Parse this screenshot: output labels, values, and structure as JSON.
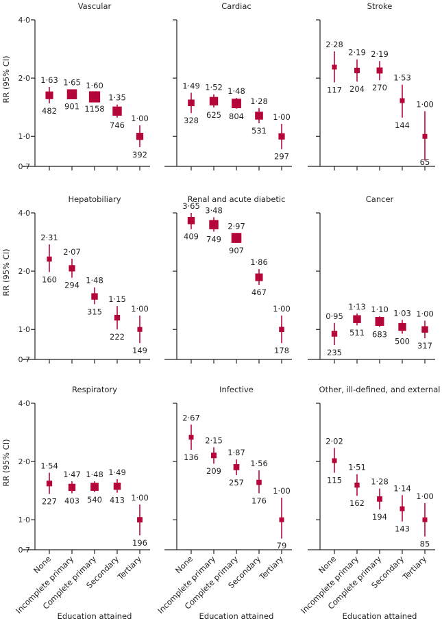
{
  "chart_data": {
    "type": "forest-grid",
    "ylabel": "RR (95% CI)",
    "xlabel": "Education attained",
    "yscale": "log",
    "ylim": [
      0.7,
      4.0
    ],
    "yticks": [
      0.7,
      1.0,
      2.0,
      4.0
    ],
    "ytick_labels": [
      "0·7",
      "1·0",
      "2·0",
      "4·0"
    ],
    "categories": [
      "None",
      "Incomplete primary",
      "Complete primary",
      "Secondary",
      "Tertiary"
    ],
    "marker_color": "#b5063a",
    "axis_color": "#231f20",
    "panels": [
      {
        "title": "Vascular",
        "rr": [
          1.63,
          1.65,
          1.6,
          1.35,
          1.0
        ],
        "rr_labels": [
          "1·63",
          "1·65",
          "1·60",
          "1·35",
          "1·00"
        ],
        "ci_low": [
          1.48,
          1.56,
          1.52,
          1.25,
          0.88
        ],
        "ci_high": [
          1.8,
          1.75,
          1.69,
          1.46,
          1.14
        ],
        "deaths": [
          "482",
          "901",
          "1158",
          "746",
          "392"
        ]
      },
      {
        "title": "Cardiac",
        "rr": [
          1.49,
          1.52,
          1.48,
          1.28,
          1.0
        ],
        "rr_labels": [
          "1·49",
          "1·52",
          "1·48",
          "1·28",
          "1·00"
        ],
        "ci_low": [
          1.32,
          1.41,
          1.39,
          1.17,
          0.86
        ],
        "ci_high": [
          1.68,
          1.65,
          1.58,
          1.4,
          1.16
        ],
        "deaths": [
          "328",
          "625",
          "804",
          "531",
          "297"
        ]
      },
      {
        "title": "Stroke",
        "rr": [
          2.28,
          2.19,
          2.19,
          1.53,
          1.0
        ],
        "rr_labels": [
          "2·28",
          "2·19",
          "2·19",
          "1·53",
          "1·00"
        ],
        "ci_low": [
          1.9,
          1.92,
          1.95,
          1.25,
          0.75
        ],
        "ci_high": [
          2.75,
          2.5,
          2.45,
          1.85,
          1.35
        ],
        "deaths": [
          "117",
          "204",
          "270",
          "144",
          "65"
        ]
      },
      {
        "title": "Hepatobiliary",
        "rr": [
          2.31,
          2.07,
          1.48,
          1.15,
          1.0
        ],
        "rr_labels": [
          "2·31",
          "2·07",
          "1·48",
          "1·15",
          "1·00"
        ],
        "ci_low": [
          1.98,
          1.85,
          1.35,
          1.0,
          0.85
        ],
        "ci_high": [
          2.75,
          2.32,
          1.65,
          1.32,
          1.18
        ],
        "deaths": [
          "160",
          "294",
          "315",
          "222",
          "149"
        ]
      },
      {
        "title": "Renal and acute diabetic",
        "rr": [
          3.65,
          3.48,
          2.97,
          1.86,
          1.0
        ],
        "rr_labels": [
          "3·65",
          "3·48",
          "2·97",
          "1·86",
          "1·00"
        ],
        "ci_low": [
          3.3,
          3.2,
          2.8,
          1.7,
          0.85
        ],
        "ci_high": [
          4.05,
          3.8,
          3.15,
          2.05,
          1.18
        ],
        "deaths": [
          "409",
          "749",
          "907",
          "467",
          "178"
        ]
      },
      {
        "title": "Cancer",
        "rr": [
          0.95,
          1.13,
          1.1,
          1.03,
          1.0
        ],
        "rr_labels": [
          "0·95",
          "1·13",
          "1·10",
          "1·03",
          "1·00"
        ],
        "ci_low": [
          0.83,
          1.05,
          1.03,
          0.95,
          0.9
        ],
        "ci_high": [
          1.08,
          1.21,
          1.17,
          1.12,
          1.11
        ],
        "deaths": [
          "235",
          "511",
          "683",
          "500",
          "317"
        ]
      },
      {
        "title": "Respiratory",
        "rr": [
          1.54,
          1.47,
          1.48,
          1.49,
          1.0
        ],
        "rr_labels": [
          "1·54",
          "1·47",
          "1·48",
          "1·49",
          "1·00"
        ],
        "ci_low": [
          1.36,
          1.37,
          1.39,
          1.38,
          0.83
        ],
        "ci_high": [
          1.75,
          1.58,
          1.58,
          1.62,
          1.2
        ],
        "deaths": [
          "227",
          "403",
          "540",
          "413",
          "196"
        ]
      },
      {
        "title": "Infective",
        "rr": [
          2.67,
          2.15,
          1.87,
          1.56,
          1.0
        ],
        "rr_labels": [
          "2·67",
          "2·15",
          "1·87",
          "1·56",
          "1·00"
        ],
        "ci_low": [
          2.3,
          1.95,
          1.7,
          1.37,
          0.8
        ],
        "ci_high": [
          3.1,
          2.37,
          2.05,
          1.8,
          1.3
        ],
        "deaths": [
          "136",
          "209",
          "257",
          "176",
          "79"
        ]
      },
      {
        "title": "Other, ill-defined, and external",
        "rr": [
          2.02,
          1.51,
          1.28,
          1.14,
          1.0
        ],
        "rr_labels": [
          "2·02",
          "1·51",
          "1·28",
          "1·14",
          "1·00"
        ],
        "ci_low": [
          1.75,
          1.33,
          1.13,
          0.98,
          0.82
        ],
        "ci_high": [
          2.35,
          1.72,
          1.45,
          1.34,
          1.22
        ],
        "deaths": [
          "115",
          "162",
          "194",
          "143",
          "85"
        ]
      }
    ]
  }
}
